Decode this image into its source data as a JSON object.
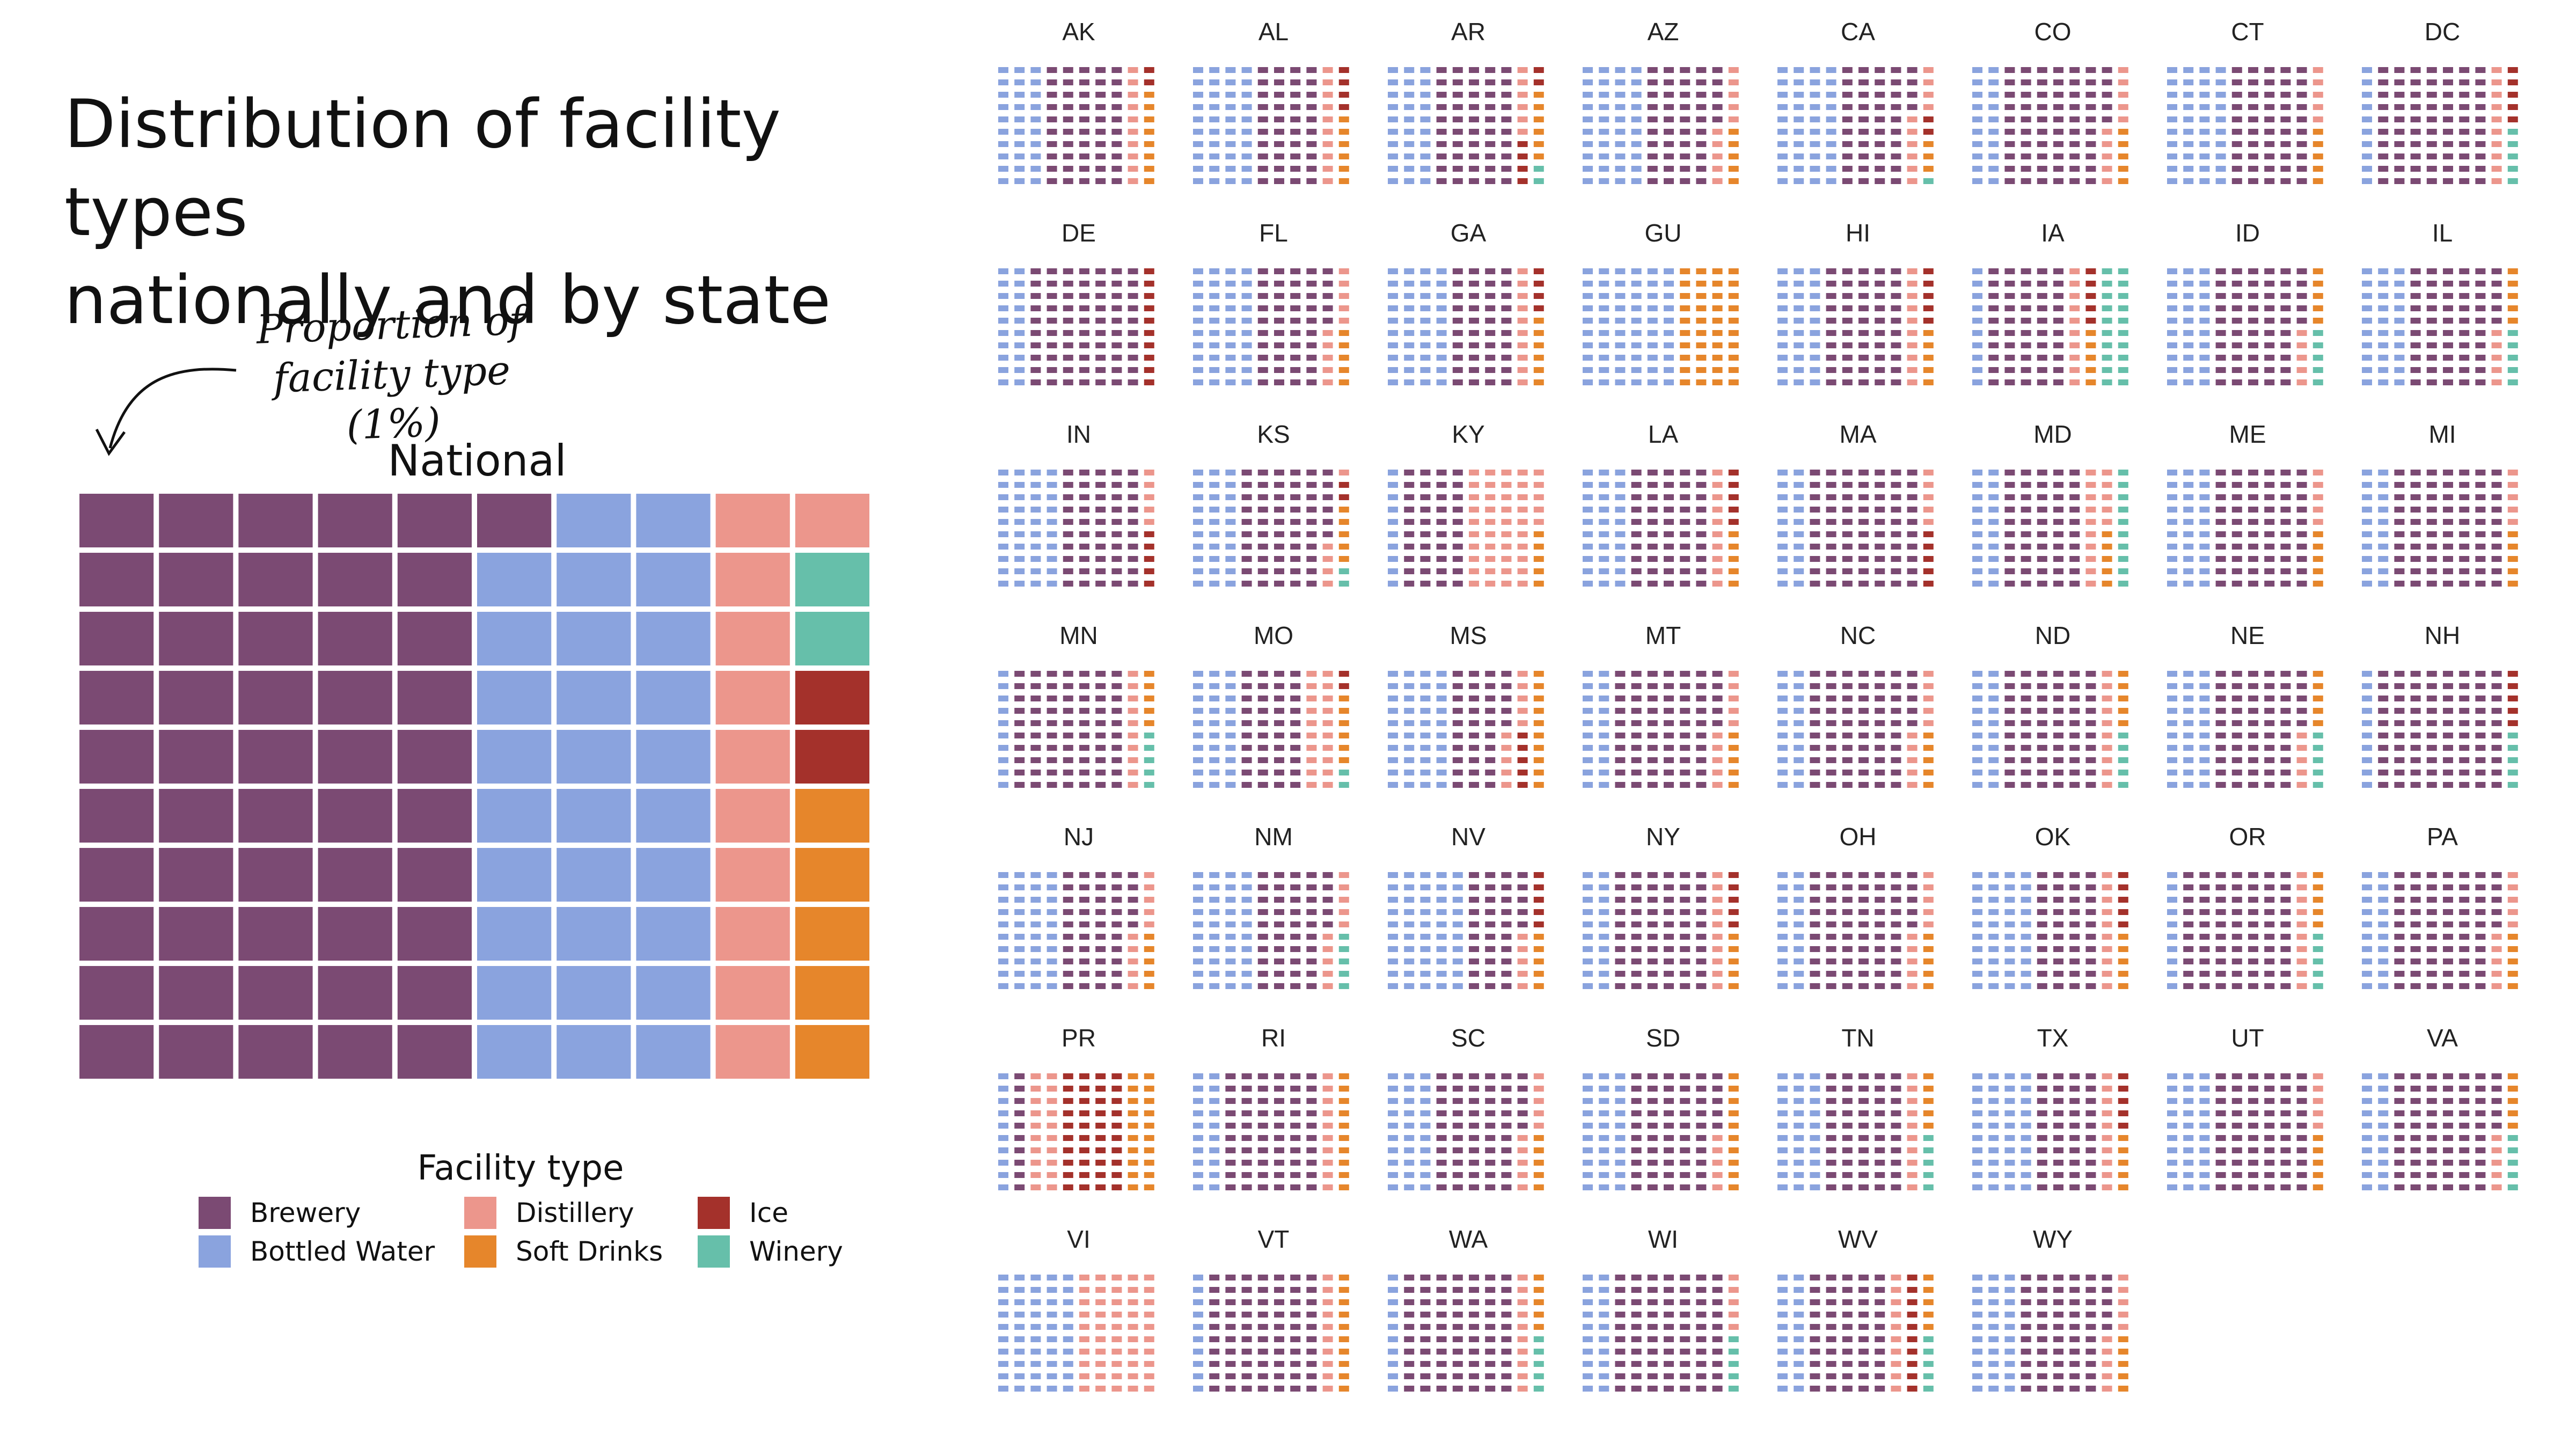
{
  "title_lines": [
    "Distribution of facility types",
    "nationally and by state"
  ],
  "annotation_lines": [
    "Proportion of",
    "facility type (1%)"
  ],
  "legend": {
    "title": "Facility type",
    "items": [
      {
        "label": "Brewery",
        "color": "#7b4a73"
      },
      {
        "label": "Distillery",
        "color": "#ec968c"
      },
      {
        "label": "Ice",
        "color": "#a4312b"
      },
      {
        "label": "Bottled Water",
        "color": "#8aa3de"
      },
      {
        "label": "Soft Drinks",
        "color": "#e6862b"
      },
      {
        "label": "Winery",
        "color": "#66bfaa"
      }
    ]
  },
  "chart_data": {
    "type": "waffle",
    "unit": "1% per square",
    "categories": [
      "Brewery",
      "Bottled Water",
      "Distillery",
      "Ice",
      "Soft Drinks",
      "Winery"
    ],
    "national": {
      "label": "National",
      "values": {
        "Brewery": 51,
        "Bottled Water": 29,
        "Distillery": 11,
        "Ice": 2,
        "Soft Drinks": 5,
        "Winery": 2
      }
    },
    "states": [
      {
        "label": "AK",
        "values": {
          "Bottled Water": 30,
          "Brewery": 50,
          "Distillery": 10,
          "Ice": 2,
          "Soft Drinks": 8,
          "Winery": 0
        }
      },
      {
        "label": "AL",
        "values": {
          "Bottled Water": 40,
          "Brewery": 40,
          "Distillery": 10,
          "Ice": 4,
          "Soft Drinks": 6,
          "Winery": 0
        }
      },
      {
        "label": "AR",
        "values": {
          "Bottled Water": 30,
          "Brewery": 50,
          "Distillery": 6,
          "Ice": 6,
          "Soft Drinks": 6,
          "Winery": 2
        }
      },
      {
        "label": "AZ",
        "values": {
          "Bottled Water": 40,
          "Brewery": 45,
          "Distillery": 10,
          "Ice": 0,
          "Soft Drinks": 5,
          "Winery": 0
        }
      },
      {
        "label": "CA",
        "values": {
          "Bottled Water": 40,
          "Brewery": 44,
          "Distillery": 10,
          "Ice": 2,
          "Soft Drinks": 3,
          "Winery": 1
        }
      },
      {
        "label": "CO",
        "values": {
          "Bottled Water": 20,
          "Brewery": 65,
          "Distillery": 10,
          "Ice": 0,
          "Soft Drinks": 5,
          "Winery": 0
        }
      },
      {
        "label": "CT",
        "values": {
          "Bottled Water": 40,
          "Brewery": 50,
          "Distillery": 5,
          "Ice": 0,
          "Soft Drinks": 5,
          "Winery": 0
        }
      },
      {
        "label": "DC",
        "values": {
          "Bottled Water": 10,
          "Brewery": 70,
          "Distillery": 10,
          "Ice": 5,
          "Soft Drinks": 0,
          "Winery": 5
        }
      },
      {
        "label": "DE",
        "values": {
          "Bottled Water": 20,
          "Brewery": 70,
          "Distillery": 0,
          "Ice": 10,
          "Soft Drinks": 0,
          "Winery": 0
        }
      },
      {
        "label": "FL",
        "values": {
          "Bottled Water": 40,
          "Brewery": 45,
          "Distillery": 10,
          "Ice": 0,
          "Soft Drinks": 5,
          "Winery": 0
        }
      },
      {
        "label": "GA",
        "values": {
          "Bottled Water": 40,
          "Brewery": 40,
          "Distillery": 10,
          "Ice": 4,
          "Soft Drinks": 6,
          "Winery": 0
        }
      },
      {
        "label": "GU",
        "values": {
          "Bottled Water": 60,
          "Brewery": 0,
          "Distillery": 0,
          "Ice": 0,
          "Soft Drinks": 40,
          "Winery": 0
        }
      },
      {
        "label": "HI",
        "values": {
          "Bottled Water": 30,
          "Brewery": 50,
          "Distillery": 10,
          "Ice": 5,
          "Soft Drinks": 5,
          "Winery": 0
        }
      },
      {
        "label": "IA",
        "values": {
          "Bottled Water": 10,
          "Brewery": 50,
          "Distillery": 10,
          "Ice": 5,
          "Soft Drinks": 5,
          "Winery": 20
        }
      },
      {
        "label": "ID",
        "values": {
          "Bottled Water": 30,
          "Brewery": 55,
          "Distillery": 5,
          "Ice": 0,
          "Soft Drinks": 5,
          "Winery": 5
        }
      },
      {
        "label": "IL",
        "values": {
          "Bottled Water": 30,
          "Brewery": 55,
          "Distillery": 5,
          "Ice": 0,
          "Soft Drinks": 5,
          "Winery": 5
        }
      },
      {
        "label": "IN",
        "values": {
          "Bottled Water": 40,
          "Brewery": 50,
          "Distillery": 5,
          "Ice": 5,
          "Soft Drinks": 0,
          "Winery": 0
        }
      },
      {
        "label": "KS",
        "values": {
          "Bottled Water": 30,
          "Brewery": 56,
          "Distillery": 5,
          "Ice": 2,
          "Soft Drinks": 5,
          "Winery": 2
        }
      },
      {
        "label": "KY",
        "values": {
          "Bottled Water": 10,
          "Brewery": 40,
          "Distillery": 45,
          "Ice": 0,
          "Soft Drinks": 5,
          "Winery": 0
        }
      },
      {
        "label": "LA",
        "values": {
          "Bottled Water": 30,
          "Brewery": 50,
          "Distillery": 10,
          "Ice": 5,
          "Soft Drinks": 5,
          "Winery": 0
        }
      },
      {
        "label": "MA",
        "values": {
          "Bottled Water": 20,
          "Brewery": 70,
          "Distillery": 5,
          "Ice": 5,
          "Soft Drinks": 0,
          "Winery": 0
        }
      },
      {
        "label": "MD",
        "values": {
          "Bottled Water": 20,
          "Brewery": 50,
          "Distillery": 15,
          "Ice": 0,
          "Soft Drinks": 5,
          "Winery": 10
        }
      },
      {
        "label": "ME",
        "values": {
          "Bottled Water": 30,
          "Brewery": 60,
          "Distillery": 5,
          "Ice": 0,
          "Soft Drinks": 5,
          "Winery": 0
        }
      },
      {
        "label": "MI",
        "values": {
          "Bottled Water": 20,
          "Brewery": 70,
          "Distillery": 5,
          "Ice": 0,
          "Soft Drinks": 5,
          "Winery": 0
        }
      },
      {
        "label": "MN",
        "values": {
          "Bottled Water": 10,
          "Brewery": 70,
          "Distillery": 10,
          "Ice": 0,
          "Soft Drinks": 5,
          "Winery": 5
        }
      },
      {
        "label": "MO",
        "values": {
          "Bottled Water": 30,
          "Brewery": 40,
          "Distillery": 20,
          "Ice": 2,
          "Soft Drinks": 6,
          "Winery": 2
        }
      },
      {
        "label": "MS",
        "values": {
          "Bottled Water": 40,
          "Brewery": 35,
          "Distillery": 10,
          "Ice": 5,
          "Soft Drinks": 10,
          "Winery": 0
        }
      },
      {
        "label": "MT",
        "values": {
          "Bottled Water": 20,
          "Brewery": 65,
          "Distillery": 10,
          "Ice": 0,
          "Soft Drinks": 5,
          "Winery": 0
        }
      },
      {
        "label": "NC",
        "values": {
          "Bottled Water": 20,
          "Brewery": 65,
          "Distillery": 10,
          "Ice": 0,
          "Soft Drinks": 5,
          "Winery": 0
        }
      },
      {
        "label": "ND",
        "values": {
          "Bottled Water": 20,
          "Brewery": 60,
          "Distillery": 10,
          "Ice": 0,
          "Soft Drinks": 5,
          "Winery": 5
        }
      },
      {
        "label": "NE",
        "values": {
          "Bottled Water": 30,
          "Brewery": 55,
          "Distillery": 5,
          "Ice": 0,
          "Soft Drinks": 5,
          "Winery": 5
        }
      },
      {
        "label": "NH",
        "values": {
          "Bottled Water": 10,
          "Brewery": 80,
          "Distillery": 0,
          "Ice": 5,
          "Soft Drinks": 0,
          "Winery": 5
        }
      },
      {
        "label": "NJ",
        "values": {
          "Bottled Water": 40,
          "Brewery": 45,
          "Distillery": 10,
          "Ice": 0,
          "Soft Drinks": 5,
          "Winery": 0
        }
      },
      {
        "label": "NM",
        "values": {
          "Bottled Water": 40,
          "Brewery": 45,
          "Distillery": 10,
          "Ice": 0,
          "Soft Drinks": 0,
          "Winery": 5
        }
      },
      {
        "label": "NV",
        "values": {
          "Bottled Water": 50,
          "Brewery": 35,
          "Distillery": 5,
          "Ice": 5,
          "Soft Drinks": 5,
          "Winery": 0
        }
      },
      {
        "label": "NY",
        "values": {
          "Bottled Water": 20,
          "Brewery": 60,
          "Distillery": 10,
          "Ice": 5,
          "Soft Drinks": 5,
          "Winery": 0
        }
      },
      {
        "label": "OH",
        "values": {
          "Bottled Water": 20,
          "Brewery": 65,
          "Distillery": 10,
          "Ice": 0,
          "Soft Drinks": 5,
          "Winery": 0
        }
      },
      {
        "label": "OK",
        "values": {
          "Bottled Water": 40,
          "Brewery": 40,
          "Distillery": 10,
          "Ice": 5,
          "Soft Drinks": 5,
          "Winery": 0
        }
      },
      {
        "label": "OR",
        "values": {
          "Bottled Water": 10,
          "Brewery": 70,
          "Distillery": 10,
          "Ice": 0,
          "Soft Drinks": 5,
          "Winery": 5
        }
      },
      {
        "label": "PA",
        "values": {
          "Bottled Water": 20,
          "Brewery": 65,
          "Distillery": 10,
          "Ice": 0,
          "Soft Drinks": 5,
          "Winery": 0
        }
      },
      {
        "label": "PR",
        "values": {
          "Bottled Water": 10,
          "Brewery": 10,
          "Distillery": 20,
          "Ice": 40,
          "Soft Drinks": 20,
          "Winery": 0
        }
      },
      {
        "label": "RI",
        "values": {
          "Bottled Water": 20,
          "Brewery": 60,
          "Distillery": 10,
          "Ice": 0,
          "Soft Drinks": 10,
          "Winery": 0
        }
      },
      {
        "label": "SC",
        "values": {
          "Bottled Water": 30,
          "Brewery": 55,
          "Distillery": 10,
          "Ice": 0,
          "Soft Drinks": 5,
          "Winery": 0
        }
      },
      {
        "label": "SD",
        "values": {
          "Bottled Water": 30,
          "Brewery": 55,
          "Distillery": 5,
          "Ice": 0,
          "Soft Drinks": 10,
          "Winery": 0
        }
      },
      {
        "label": "TN",
        "values": {
          "Bottled Water": 30,
          "Brewery": 50,
          "Distillery": 10,
          "Ice": 0,
          "Soft Drinks": 5,
          "Winery": 5
        }
      },
      {
        "label": "TX",
        "values": {
          "Bottled Water": 40,
          "Brewery": 40,
          "Distillery": 10,
          "Ice": 5,
          "Soft Drinks": 5,
          "Winery": 0
        }
      },
      {
        "label": "UT",
        "values": {
          "Bottled Water": 30,
          "Brewery": 60,
          "Distillery": 5,
          "Ice": 0,
          "Soft Drinks": 5,
          "Winery": 0
        }
      },
      {
        "label": "VA",
        "values": {
          "Bottled Water": 20,
          "Brewery": 65,
          "Distillery": 5,
          "Ice": 0,
          "Soft Drinks": 5,
          "Winery": 5
        }
      },
      {
        "label": "VI",
        "values": {
          "Bottled Water": 50,
          "Brewery": 0,
          "Distillery": 50,
          "Ice": 0,
          "Soft Drinks": 0,
          "Winery": 0
        }
      },
      {
        "label": "VT",
        "values": {
          "Bottled Water": 10,
          "Brewery": 70,
          "Distillery": 10,
          "Ice": 0,
          "Soft Drinks": 10,
          "Winery": 0
        }
      },
      {
        "label": "WA",
        "values": {
          "Bottled Water": 10,
          "Brewery": 70,
          "Distillery": 10,
          "Ice": 0,
          "Soft Drinks": 5,
          "Winery": 5
        }
      },
      {
        "label": "WI",
        "values": {
          "Bottled Water": 20,
          "Brewery": 70,
          "Distillery": 5,
          "Ice": 0,
          "Soft Drinks": 0,
          "Winery": 5
        }
      },
      {
        "label": "WV",
        "values": {
          "Bottled Water": 20,
          "Brewery": 50,
          "Distillery": 10,
          "Ice": 10,
          "Soft Drinks": 5,
          "Winery": 5
        }
      },
      {
        "label": "WY",
        "values": {
          "Bottled Water": 30,
          "Brewery": 55,
          "Distillery": 10,
          "Ice": 0,
          "Soft Drinks": 5,
          "Winery": 0
        }
      }
    ]
  }
}
